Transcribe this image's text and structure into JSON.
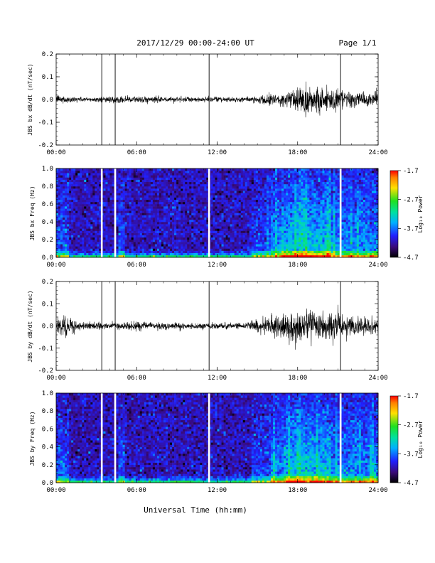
{
  "header": {
    "date_range": "2017/12/29  00:00-24:00 UT",
    "page": "Page 1/1"
  },
  "x_axis": {
    "title": "Universal Time (hh:mm)",
    "ticks": [
      "00:00",
      "06:00",
      "12:00",
      "18:00",
      "24:00"
    ]
  },
  "colorbar": {
    "label": "Log₁₀ Power",
    "ticks": [
      "-1.7",
      "-2.7",
      "-3.7",
      "-4.7"
    ]
  },
  "chart_data": [
    {
      "type": "line",
      "ylabel": "JBS bx dB/dt (nT/sec)",
      "xlim": [
        0,
        24
      ],
      "ylim": [
        -0.2,
        0.2
      ],
      "y_ticks": [
        "0.2",
        "0.1",
        "0.0",
        "-0.1",
        "-0.2"
      ],
      "spikes_hours": [
        3.4,
        4.4,
        11.4,
        21.2
      ],
      "amplitude_profile": {
        "x": [
          0,
          0.5,
          2,
          4.5,
          5.5,
          10,
          14,
          15.5,
          17,
          18.5,
          20,
          21,
          22,
          24
        ],
        "y": [
          0.015,
          0.012,
          0.008,
          0.01,
          0.012,
          0.008,
          0.008,
          0.015,
          0.025,
          0.06,
          0.045,
          0.035,
          0.025,
          0.02
        ]
      }
    },
    {
      "type": "heatmap",
      "ylabel": "JBS bx Freq (Hz)",
      "xlim": [
        0,
        24
      ],
      "ylim": [
        0,
        1.0
      ],
      "y_ticks": [
        "1.0",
        "0.8",
        "0.6",
        "0.4",
        "0.2",
        "0.0"
      ],
      "clim": [
        -4.7,
        -1.7
      ],
      "gaps_hours": [
        3.4,
        4.4,
        11.4,
        21.2
      ]
    },
    {
      "type": "line",
      "ylabel": "JBS by dB/dt (nT/sec)",
      "xlim": [
        0,
        24
      ],
      "ylim": [
        -0.2,
        0.2
      ],
      "y_ticks": [
        "0.2",
        "0.1",
        "0.0",
        "-0.1",
        "-0.2"
      ],
      "spikes_hours": [
        3.4,
        4.4,
        11.4,
        21.2
      ],
      "amplitude_profile": {
        "x": [
          0,
          0.8,
          2,
          4.5,
          5.5,
          10,
          14,
          15.5,
          17,
          18.5,
          20,
          21,
          22,
          24
        ],
        "y": [
          0.04,
          0.03,
          0.012,
          0.012,
          0.015,
          0.01,
          0.01,
          0.025,
          0.045,
          0.06,
          0.05,
          0.045,
          0.035,
          0.025
        ]
      }
    },
    {
      "type": "heatmap",
      "ylabel": "JBS by Freq (Hz)",
      "xlim": [
        0,
        24
      ],
      "ylim": [
        0,
        1.0
      ],
      "y_ticks": [
        "1.0",
        "0.8",
        "0.6",
        "0.4",
        "0.2",
        "0.0"
      ],
      "clim": [
        -4.7,
        -1.7
      ],
      "gaps_hours": [
        3.4,
        4.4,
        11.4,
        21.2
      ]
    }
  ]
}
